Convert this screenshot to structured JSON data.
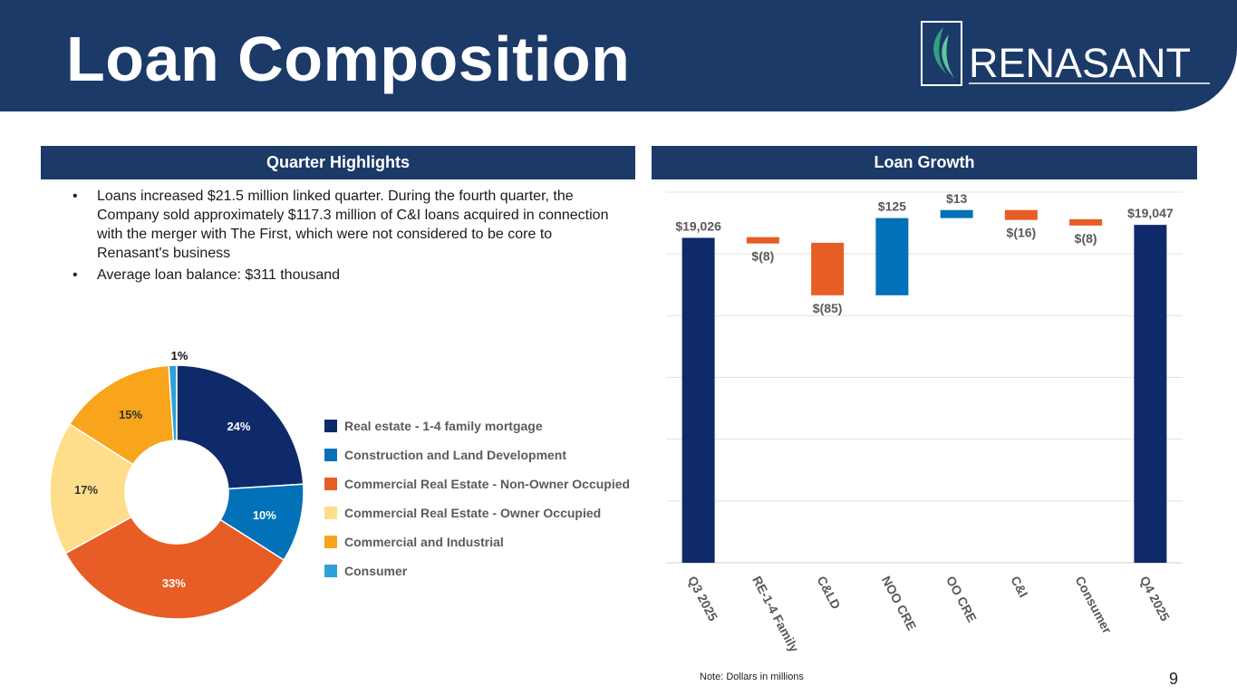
{
  "title": "Loan Composition",
  "logo": {
    "text": "RENASANT"
  },
  "highlights": {
    "header": "Quarter Highlights",
    "bullets": [
      "Loans increased $21.5 million linked quarter. During the fourth quarter, the Company sold approximately $117.3 million of C&I loans acquired in connection with the merger with The First, which were not considered to be core to Renasant's business",
      "Average loan balance: $311 thousand"
    ]
  },
  "growth": {
    "header": "Loan Growth"
  },
  "chart_data": [
    {
      "type": "pie",
      "variant": "donut",
      "labels": [
        "Real estate - 1-4 family mortgage",
        "Construction and Land Development",
        "Commercial Real Estate - Non-Owner Occupied",
        "Commercial Real Estate - Owner Occupied",
        "Commercial and Industrial",
        "Consumer"
      ],
      "values": [
        24,
        10,
        33,
        17,
        15,
        1
      ],
      "value_labels": [
        "24%",
        "10%",
        "33%",
        "17%",
        "15%",
        "1%"
      ],
      "colors": [
        "#0f2a6b",
        "#0271b8",
        "#e85d25",
        "#fede8a",
        "#f8a51b",
        "#2ea2d7"
      ],
      "legend_position": "right"
    },
    {
      "type": "bar",
      "variant": "waterfall",
      "title": "Loan Growth",
      "categories": [
        "Q3 2025",
        "RE-1-4 Family",
        "C&LD",
        "NOO CRE",
        "OO CRE",
        "C&I",
        "Consumer",
        "Q4 2025"
      ],
      "values": [
        19026,
        -8,
        -85,
        125,
        13,
        -16,
        -8,
        19047
      ],
      "kinds": [
        "total",
        "delta",
        "delta",
        "delta",
        "delta",
        "delta",
        "delta",
        "total"
      ],
      "value_labels": [
        "$19,026",
        "$(8)",
        "$(85)",
        "$125",
        "$13",
        "$(16)",
        "$(8)",
        "$19,047"
      ],
      "colors": {
        "total": "#0f2a6b",
        "increase": "#0271b8",
        "decrease": "#e85d25"
      },
      "ylim": [
        18500,
        19100
      ],
      "grid": true
    }
  ],
  "note": "Note: Dollars in millions",
  "page_number": "9"
}
